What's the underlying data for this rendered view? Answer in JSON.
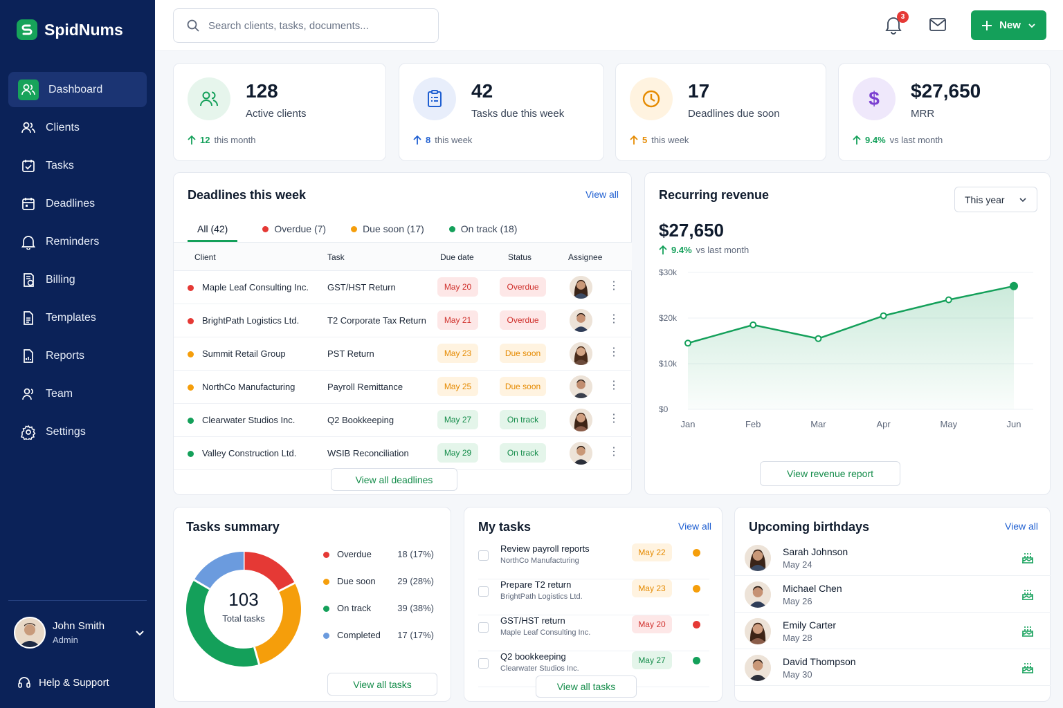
{
  "app": {
    "name": "SpidNums",
    "brand_color": "#14a05a",
    "sidebar_color": "#0b2258"
  },
  "sidebar": {
    "items": [
      {
        "label": "Dashboard",
        "icon": "users-icon",
        "active": true
      },
      {
        "label": "Clients",
        "icon": "users-icon"
      },
      {
        "label": "Tasks",
        "icon": "checkbox-calendar-icon"
      },
      {
        "label": "Deadlines",
        "icon": "calendar-icon"
      },
      {
        "label": "Reminders",
        "icon": "bell-icon"
      },
      {
        "label": "Billing",
        "icon": "invoice-icon"
      },
      {
        "label": "Templates",
        "icon": "document-icon"
      },
      {
        "label": "Reports",
        "icon": "report-icon"
      },
      {
        "label": "Team",
        "icon": "team-icon"
      },
      {
        "label": "Settings",
        "icon": "gear-icon"
      }
    ],
    "user": {
      "name": "John Smith",
      "role": "Admin"
    },
    "help": "Help & Support"
  },
  "topbar": {
    "search_placeholder": "Search clients, tasks, documents...",
    "notification_count": "3",
    "new_label": "New"
  },
  "stats": [
    {
      "value": "128",
      "label": "Active clients",
      "delta": "12",
      "period": "this month",
      "color": "#14a05a",
      "bg": "#e6f5ec"
    },
    {
      "value": "42",
      "label": "Tasks due this week",
      "delta": "8",
      "period": "this week",
      "color": "#1f5fd1",
      "bg": "#e8eefb"
    },
    {
      "value": "17",
      "label": "Deadlines due soon",
      "delta": "5",
      "period": "this week",
      "color": "#e58a00",
      "bg": "#fff3e0"
    },
    {
      "value": "$27,650",
      "label": "MRR",
      "delta": "9.4%",
      "period": "vs last month",
      "color": "#7b3fd1",
      "bg": "#efe8fb"
    }
  ],
  "deadlines": {
    "title": "Deadlines this week",
    "view_all": "View all",
    "tabs": [
      {
        "label": "All (42)",
        "color": ""
      },
      {
        "label": "Overdue (7)",
        "color": "#e53935"
      },
      {
        "label": "Due soon (17)",
        "color": "#f59e0b"
      },
      {
        "label": "On track (18)",
        "color": "#14a05a"
      }
    ],
    "columns": [
      "Client",
      "Task",
      "Due date",
      "Status",
      "Assignee"
    ],
    "rows": [
      {
        "client": "Maple Leaf Consulting Inc.",
        "task": "GST/HST Return",
        "due": "May 20",
        "status": "Overdue",
        "kind": "red",
        "dot": "#e53935"
      },
      {
        "client": "BrightPath Logistics Ltd.",
        "task": "T2 Corporate Tax Return",
        "due": "May 21",
        "status": "Overdue",
        "kind": "red",
        "dot": "#e53935"
      },
      {
        "client": "Summit Retail Group",
        "task": "PST Return",
        "due": "May 23",
        "status": "Due soon",
        "kind": "org",
        "dot": "#f59e0b"
      },
      {
        "client": "NorthCo Manufacturing",
        "task": "Payroll Remittance",
        "due": "May 25",
        "status": "Due soon",
        "kind": "org",
        "dot": "#f59e0b"
      },
      {
        "client": "Clearwater Studios Inc.",
        "task": "Q2 Bookkeeping",
        "due": "May 27",
        "status": "On track",
        "kind": "grn",
        "dot": "#14a05a"
      },
      {
        "client": "Valley Construction Ltd.",
        "task": "WSIB Reconciliation",
        "due": "May 29",
        "status": "On track",
        "kind": "grn",
        "dot": "#14a05a"
      }
    ],
    "button": "View all deadlines"
  },
  "revenue": {
    "title": "Recurring revenue",
    "period": "This year",
    "value": "$27,650",
    "delta": "9.4%",
    "delta_text": "vs last month",
    "button": "View revenue report"
  },
  "chart_data": {
    "type": "area",
    "categories": [
      "Jan",
      "Feb",
      "Mar",
      "Apr",
      "May",
      "Jun"
    ],
    "values": [
      14500,
      18500,
      15500,
      20500,
      24000,
      27000
    ],
    "y_ticks": [
      "$0",
      "$10k",
      "$20k",
      "$30k"
    ],
    "ylim": [
      0,
      30000
    ],
    "color": "#14a05a",
    "grid": true
  },
  "tasks_summary": {
    "title": "Tasks summary",
    "total": "103",
    "total_label": "Total tasks",
    "items": [
      {
        "label": "Overdue",
        "value": "18 (17%)",
        "count": 18,
        "color": "#e53935"
      },
      {
        "label": "Due soon",
        "value": "29 (28%)",
        "count": 29,
        "color": "#f59e0b"
      },
      {
        "label": "On track",
        "value": "39 (38%)",
        "count": 39,
        "color": "#14a05a"
      },
      {
        "label": "Completed",
        "value": "17 (17%)",
        "count": 17,
        "color": "#6b9bde"
      }
    ],
    "button": "View all tasks"
  },
  "my_tasks": {
    "title": "My tasks",
    "view_all": "View all",
    "items": [
      {
        "title": "Review payroll reports",
        "client": "NorthCo Manufacturing",
        "due": "May 22",
        "kind": "org",
        "dot": "#f59e0b"
      },
      {
        "title": "Prepare T2 return",
        "client": "BrightPath Logistics Ltd.",
        "due": "May 23",
        "kind": "org",
        "dot": "#f59e0b"
      },
      {
        "title": "GST/HST return",
        "client": "Maple Leaf Consulting Inc.",
        "due": "May 20",
        "kind": "red",
        "dot": "#e53935"
      },
      {
        "title": "Q2 bookkeeping",
        "client": "Clearwater Studios Inc.",
        "due": "May 27",
        "kind": "grn",
        "dot": "#14a05a"
      }
    ],
    "button": "View all tasks"
  },
  "birthdays": {
    "title": "Upcoming birthdays",
    "view_all": "View all",
    "items": [
      {
        "name": "Sarah Johnson",
        "date": "May 24"
      },
      {
        "name": "Michael Chen",
        "date": "May 26"
      },
      {
        "name": "Emily Carter",
        "date": "May 28"
      },
      {
        "name": "David Thompson",
        "date": "May 30"
      }
    ]
  }
}
